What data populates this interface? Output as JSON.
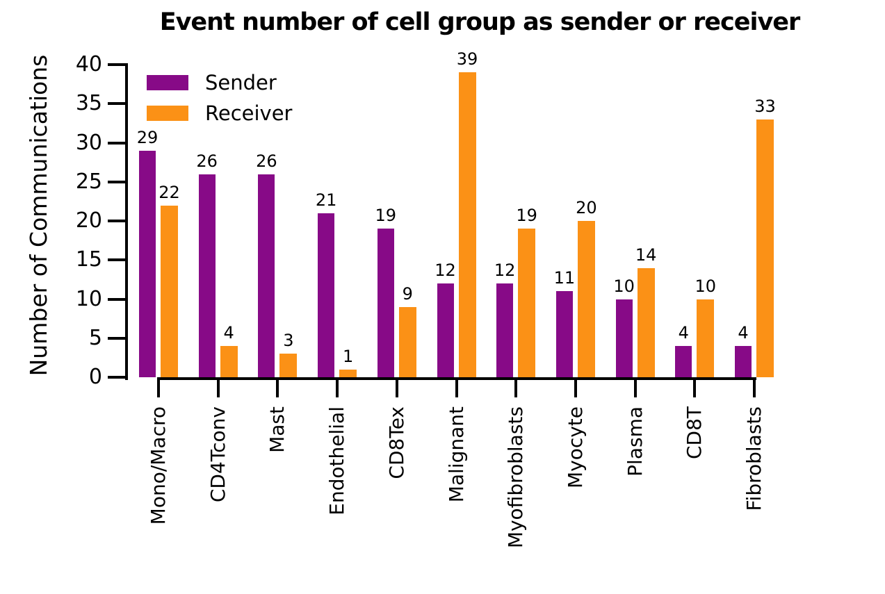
{
  "chart_data": {
    "type": "bar",
    "title": "Event number of cell group as sender or receiver",
    "ylabel": "Number of Communications",
    "xlabel": "",
    "categories": [
      "Mono/Macro",
      "CD4Tconv",
      "Mast",
      "Endothelial",
      "CD8Tex",
      "Malignant",
      "Myofibroblasts",
      "Myocyte",
      "Plasma",
      "CD8T",
      "Fibroblasts"
    ],
    "series": [
      {
        "name": "Sender",
        "color": "#870A87",
        "values": [
          29,
          26,
          26,
          21,
          19,
          12,
          12,
          11,
          10,
          4,
          4
        ]
      },
      {
        "name": "Receiver",
        "color": "#FB9116",
        "values": [
          22,
          4,
          3,
          1,
          9,
          39,
          19,
          20,
          14,
          10,
          33
        ]
      }
    ],
    "yticks": [
      0,
      5,
      10,
      15,
      20,
      25,
      30,
      35,
      40
    ],
    "ylim": [
      0,
      40
    ],
    "bar_value_labels": true,
    "grid": false,
    "legend_position": "upper-left"
  }
}
